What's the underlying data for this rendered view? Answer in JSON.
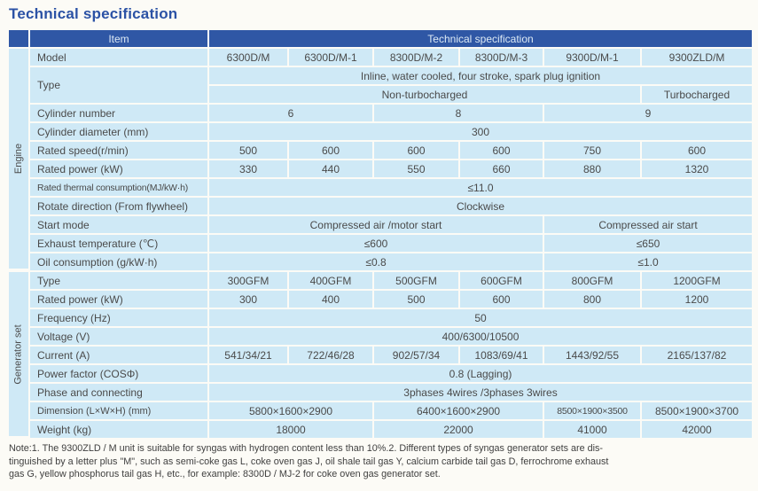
{
  "page_title": "Technical specification",
  "colors": {
    "header_blue": "#2f57a5",
    "cell_blue": "#cfe9f6",
    "title_blue": "#2b52a5"
  },
  "table": {
    "header": {
      "item": "Item",
      "spec": "Technical specification"
    },
    "engine": {
      "section_label": "Engine",
      "model": {
        "label": "Model",
        "values": [
          "6300D/M",
          "6300D/M-1",
          "8300D/M-2",
          "8300D/M-3",
          "9300D/M-1",
          "9300ZLD/M"
        ]
      },
      "type": {
        "label": "Type",
        "description": "Inline, water cooled, four stroke, spark plug ignition",
        "left": "Non-turbocharged",
        "right": "Turbocharged"
      },
      "cylinder_number": {
        "label": "Cylinder number",
        "values": [
          "6",
          "8",
          "9"
        ]
      },
      "cylinder_diameter": {
        "label": "Cylinder diameter (mm)",
        "value": "300"
      },
      "rated_speed": {
        "label": "Rated speed(r/min)",
        "values": [
          "500",
          "600",
          "600",
          "600",
          "750",
          "600"
        ]
      },
      "rated_power": {
        "label": "Rated power (kW)",
        "values": [
          "330",
          "440",
          "550",
          "660",
          "880",
          "1320"
        ]
      },
      "thermal_consumption": {
        "label": "Rated thermal consumption(MJ/kW·h)",
        "value": "≤11.0"
      },
      "rotate_direction": {
        "label": "Rotate direction (From flywheel)",
        "value": "Clockwise"
      },
      "start_mode": {
        "label": "Start mode",
        "left": "Compressed air /motor start",
        "right": "Compressed air start"
      },
      "exhaust_temperature": {
        "label": "Exhaust temperature (℃)",
        "left": "≤600",
        "right": "≤650"
      },
      "oil_consumption": {
        "label": "Oil consumption (g/kW·h)",
        "left": "≤0.8",
        "right": "≤1.0"
      }
    },
    "generator": {
      "section_label": "Generator set",
      "type": {
        "label": "Type",
        "values": [
          "300GFM",
          "400GFM",
          "500GFM",
          "600GFM",
          "800GFM",
          "1200GFM"
        ]
      },
      "rated_power": {
        "label": "Rated power (kW)",
        "values": [
          "300",
          "400",
          "500",
          "600",
          "800",
          "1200"
        ]
      },
      "frequency": {
        "label": "Frequency (Hz)",
        "value": "50"
      },
      "voltage": {
        "label": "Voltage (V)",
        "value": "400/6300/10500"
      },
      "current": {
        "label": "Current (A)",
        "values": [
          "541/34/21",
          "722/46/28",
          "902/57/34",
          "1083/69/41",
          "1443/92/55",
          "2165/137/82"
        ]
      },
      "power_factor": {
        "label": "Power factor (COSΦ)",
        "value": "0.8 (Lagging)"
      },
      "phase": {
        "label": "Phase and connecting",
        "value": "3phases 4wires /3phases 3wires"
      },
      "dimension": {
        "label": "Dimension (L×W×H)  (mm)",
        "values": [
          "5800×1600×2900",
          "6400×1600×2900",
          "8500×1900×3500",
          "8500×1900×3700"
        ]
      },
      "weight": {
        "label": "Weight (kg)",
        "values": [
          "18000",
          "22000",
          "41000",
          "42000"
        ]
      }
    }
  },
  "note": {
    "lines": [
      "Note:1. The 9300ZLD / M unit is suitable for syngas with hydrogen content less than 10%.2. Different types of syngas generator sets are dis-",
      "tinguished by a letter plus \"M\", such as semi-coke gas L, coke oven gas J, oil shale tail gas Y, calcium carbide tail gas D, ferrochrome exhaust",
      "gas G, yellow phosphorus tail gas H, etc., for example: 8300D / MJ-2 for coke oven gas generator set."
    ]
  }
}
